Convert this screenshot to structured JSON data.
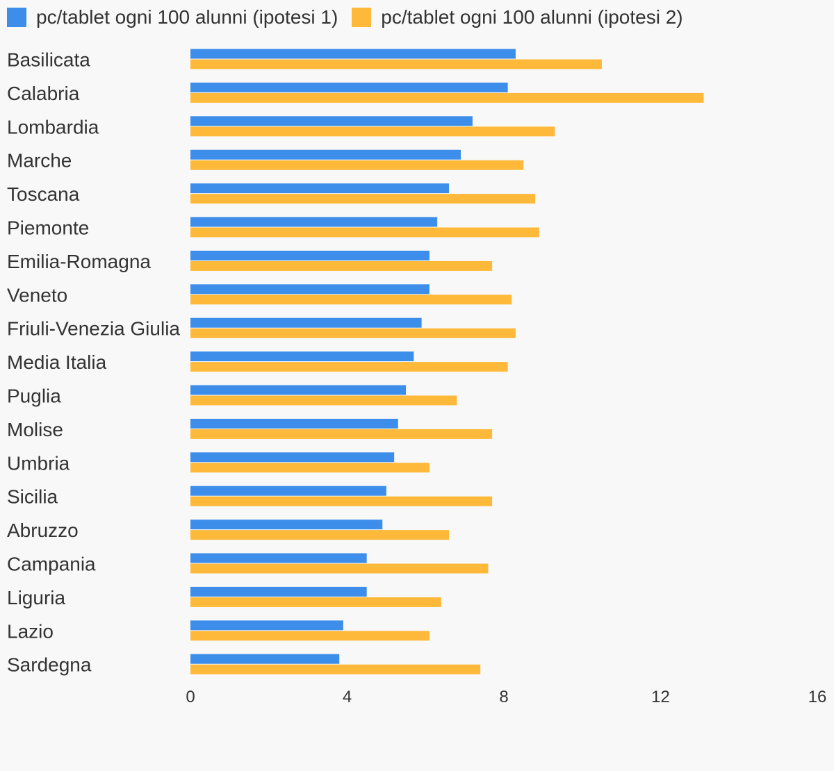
{
  "chart_data": {
    "type": "bar",
    "orientation": "horizontal",
    "categories": [
      "Basilicata",
      "Calabria",
      "Lombardia",
      "Marche",
      "Toscana",
      "Piemonte",
      "Emilia-Romagna",
      "Veneto",
      "Friuli-Venezia Giulia",
      "Media Italia",
      "Puglia",
      "Molise",
      "Umbria",
      "Sicilia",
      "Abruzzo",
      "Campania",
      "Liguria",
      "Lazio",
      "Sardegna"
    ],
    "series": [
      {
        "name": "pc/tablet ogni 100 alunni (ipotesi 1)",
        "color": "#3d8eea",
        "values": [
          8.3,
          8.1,
          7.2,
          6.9,
          6.6,
          6.3,
          6.1,
          6.1,
          5.9,
          5.7,
          5.5,
          5.3,
          5.2,
          5.0,
          4.9,
          4.5,
          4.5,
          3.9,
          3.8
        ]
      },
      {
        "name": "pc/tablet ogni 100 alunni (ipotesi 2)",
        "color": "#ffb93a",
        "values": [
          10.5,
          13.1,
          9.3,
          8.5,
          8.8,
          8.9,
          7.7,
          8.2,
          8.3,
          8.1,
          6.8,
          7.7,
          6.1,
          7.7,
          6.6,
          7.6,
          6.4,
          6.1,
          7.4
        ]
      }
    ],
    "xlim": [
      0,
      16
    ],
    "xticks": [
      "0",
      "4",
      "8",
      "12",
      "16"
    ],
    "legend_position": "top-left",
    "grid": false
  }
}
